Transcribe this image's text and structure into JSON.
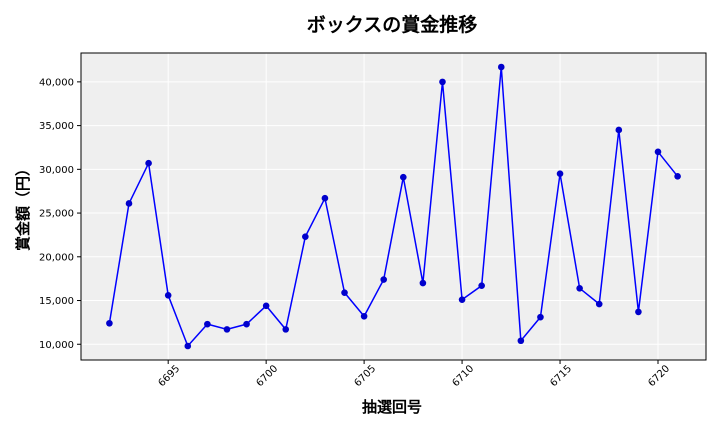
{
  "chart_data": {
    "type": "line",
    "title": "ボックスの賞金推移",
    "xlabel": "抽選回号",
    "ylabel": "賞金額（円）",
    "x": [
      6692,
      6693,
      6694,
      6695,
      6696,
      6697,
      6698,
      6699,
      6700,
      6701,
      6702,
      6703,
      6704,
      6705,
      6706,
      6707,
      6708,
      6709,
      6710,
      6711,
      6712,
      6713,
      6714,
      6715,
      6716,
      6717,
      6718,
      6719,
      6720,
      6721
    ],
    "series": [
      {
        "values": [
          12400,
          26100,
          30700,
          15600,
          9800,
          12300,
          11700,
          12300,
          14400,
          11700,
          22300,
          26700,
          15900,
          13200,
          17400,
          29100,
          17000,
          40000,
          15100,
          16700,
          41700,
          10400,
          13100,
          29500,
          16400,
          14600,
          34500,
          13700,
          32000,
          29200
        ]
      }
    ],
    "xticks": [
      6695,
      6700,
      6705,
      6710,
      6715,
      6720
    ],
    "yticks": [
      10000,
      15000,
      20000,
      25000,
      30000,
      35000,
      40000
    ],
    "ytick_labels": [
      "10,000",
      "15,000",
      "20,000",
      "25,000",
      "30,000",
      "35,000",
      "40,000"
    ],
    "xlim": [
      6690.55,
      6722.45
    ],
    "ylim": [
      8200,
      43300
    ],
    "grid": true,
    "colors": {
      "line": "#0000ff",
      "marker": "#0000cc",
      "plot_bg": "#efefef",
      "grid": "#ffffff"
    }
  }
}
